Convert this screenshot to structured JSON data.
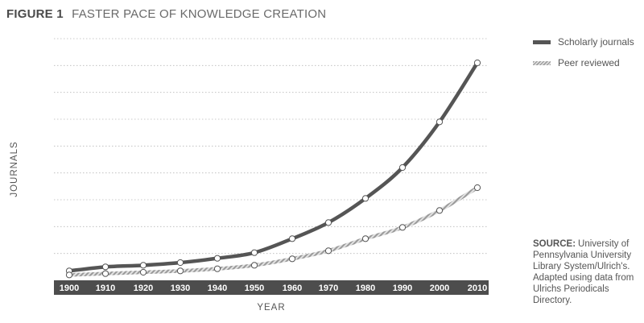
{
  "header": {
    "figure_label": "FIGURE 1",
    "title": "FASTER PACE OF KNOWLEDGE CREATION"
  },
  "legend": [
    {
      "label": "Scholarly journals",
      "style": "solid"
    },
    {
      "label": "Peer reviewed",
      "style": "hatched"
    }
  ],
  "source": {
    "label": "SOURCE:",
    "text": "University of Pennsylvania University Library System/Ulrich's. Adapted using data from Ulrichs Periodicals Directory."
  },
  "colors": {
    "primary_line": "#555555",
    "secondary_line": "#a8a8a8",
    "axis_band": "#4d4d4d"
  },
  "chart_data": {
    "type": "line",
    "title": "FASTER PACE OF KNOWLEDGE CREATION",
    "xlabel": "YEAR",
    "ylabel": "JOURNALS",
    "x": [
      1900,
      1910,
      1920,
      1930,
      1940,
      1950,
      1960,
      1970,
      1980,
      1990,
      2000,
      2010
    ],
    "ylim": [
      0,
      9
    ],
    "grid": true,
    "legend_position": "top-right",
    "series": [
      {
        "name": "Scholarly journals",
        "values": [
          0.35,
          0.5,
          0.56,
          0.66,
          0.82,
          1.03,
          1.55,
          2.15,
          3.05,
          4.2,
          5.9,
          8.1
        ]
      },
      {
        "name": "Peer reviewed",
        "values": [
          0.2,
          0.25,
          0.3,
          0.35,
          0.43,
          0.56,
          0.8,
          1.1,
          1.55,
          1.97,
          2.6,
          3.45
        ]
      }
    ]
  }
}
